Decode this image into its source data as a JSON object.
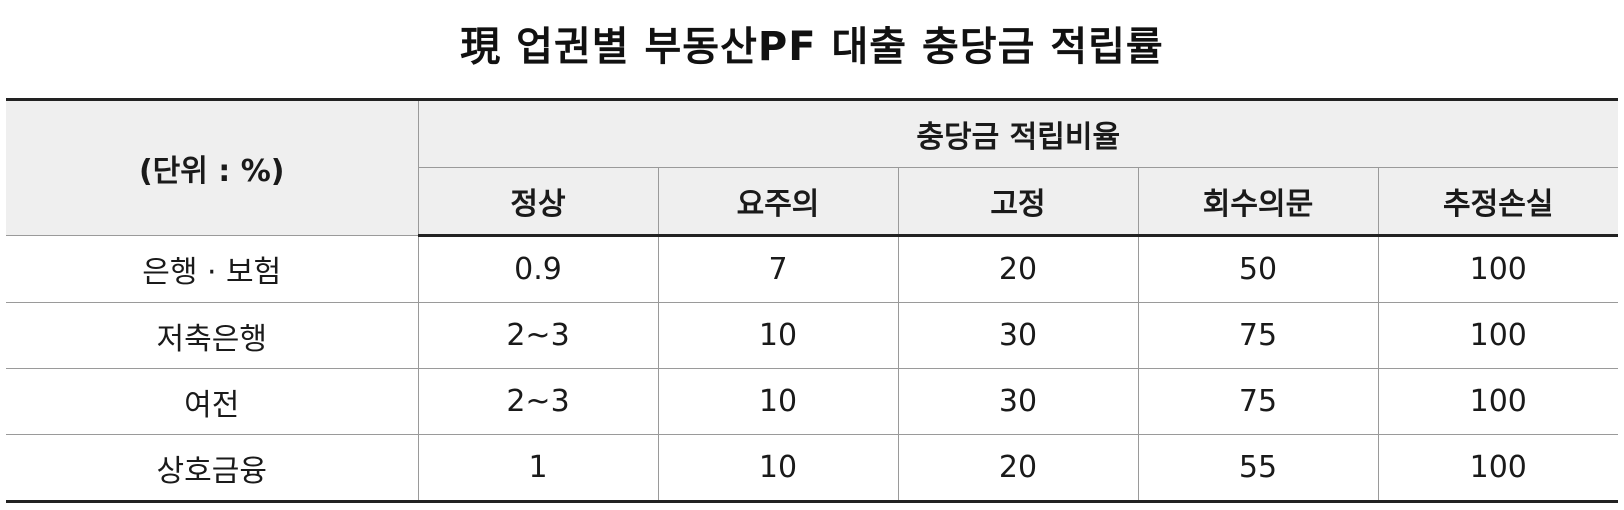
{
  "title": "現 업권별 부동산PF 대출 충당금 적립률",
  "table": {
    "unit_label": "(단위 : %)",
    "group_header": "충당금 적립비율",
    "columns": [
      "정상",
      "요주의",
      "고정",
      "회수의문",
      "추정손실"
    ],
    "rows": [
      {
        "category": "은행 · 보험",
        "values": [
          "0.9",
          "7",
          "20",
          "50",
          "100"
        ]
      },
      {
        "category": "저축은행",
        "values": [
          "2~3",
          "10",
          "30",
          "75",
          "100"
        ]
      },
      {
        "category": "여전",
        "values": [
          "2~3",
          "10",
          "30",
          "75",
          "100"
        ]
      },
      {
        "category": "상호금융",
        "values": [
          "1",
          "10",
          "20",
          "55",
          "100"
        ]
      }
    ]
  }
}
